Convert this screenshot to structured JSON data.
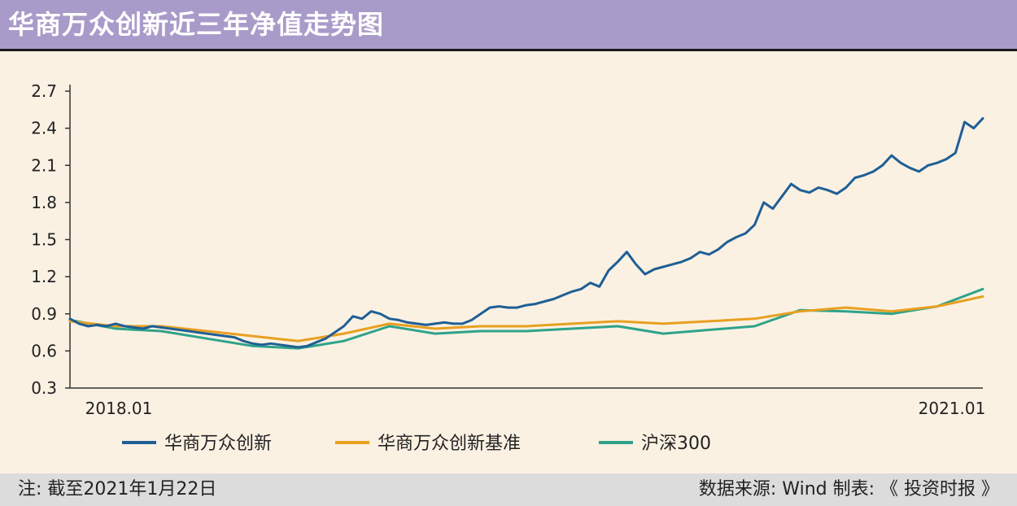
{
  "title": "华商万众创新近三年净值走势图",
  "note": "注: 截至2021年1月22日",
  "source": "数据来源: Wind  制表: 《 投资时报 》",
  "chart_data": {
    "type": "line",
    "title": "华商万众创新近三年净值走势图",
    "y_ticks": [
      "2.7",
      "2.4",
      "2.1",
      "1.8",
      "1.5",
      "1.2",
      "0.9",
      "0.6",
      "0.3"
    ],
    "ylim": [
      0.3,
      2.7
    ],
    "x_labels": [
      "2018.01",
      "2021.01"
    ],
    "xlim": [
      0,
      100
    ],
    "series": [
      {
        "name": "华商万众创新",
        "color": "#1f5f95",
        "x": [
          0,
          1,
          2,
          3,
          4,
          5,
          6,
          7,
          8,
          9,
          10,
          11,
          12,
          13,
          14,
          15,
          16,
          17,
          18,
          19,
          20,
          21,
          22,
          23,
          24,
          25,
          26,
          27,
          28,
          29,
          30,
          31,
          32,
          33,
          34,
          35,
          36,
          37,
          38,
          39,
          40,
          41,
          42,
          43,
          44,
          45,
          46,
          47,
          48,
          49,
          50,
          51,
          52,
          53,
          54,
          55,
          56,
          57,
          58,
          59,
          60,
          61,
          62,
          63,
          64,
          65,
          66,
          67,
          68,
          69,
          70,
          71,
          72,
          73,
          74,
          75,
          76,
          77,
          78,
          79,
          80,
          81,
          82,
          83,
          84,
          85,
          86,
          87,
          88,
          89,
          90,
          91,
          92,
          93,
          94,
          95,
          96,
          97,
          98,
          99,
          100
        ],
        "values": [
          0.86,
          0.82,
          0.8,
          0.81,
          0.8,
          0.82,
          0.8,
          0.79,
          0.78,
          0.8,
          0.79,
          0.78,
          0.77,
          0.76,
          0.75,
          0.74,
          0.73,
          0.72,
          0.71,
          0.68,
          0.66,
          0.65,
          0.66,
          0.65,
          0.64,
          0.63,
          0.64,
          0.67,
          0.7,
          0.75,
          0.8,
          0.88,
          0.86,
          0.92,
          0.9,
          0.86,
          0.85,
          0.83,
          0.82,
          0.81,
          0.82,
          0.83,
          0.82,
          0.82,
          0.85,
          0.9,
          0.95,
          0.96,
          0.95,
          0.95,
          0.97,
          0.98,
          1.0,
          1.02,
          1.05,
          1.08,
          1.1,
          1.15,
          1.12,
          1.25,
          1.32,
          1.4,
          1.3,
          1.22,
          1.26,
          1.28,
          1.3,
          1.32,
          1.35,
          1.4,
          1.38,
          1.42,
          1.48,
          1.52,
          1.55,
          1.62,
          1.8,
          1.75,
          1.85,
          1.95,
          1.9,
          1.88,
          1.92,
          1.9,
          1.87,
          1.92,
          2.0,
          2.02,
          2.05,
          2.1,
          2.18,
          2.12,
          2.08,
          2.05,
          2.1,
          2.12,
          2.15,
          2.2,
          2.45,
          2.4,
          2.48
        ]
      },
      {
        "name": "华商万众创新基准",
        "color": "#e8a020",
        "x": [
          0,
          5,
          10,
          15,
          20,
          25,
          30,
          35,
          40,
          45,
          50,
          55,
          60,
          65,
          70,
          75,
          80,
          85,
          90,
          95,
          100
        ],
        "values": [
          0.84,
          0.8,
          0.8,
          0.76,
          0.72,
          0.68,
          0.74,
          0.82,
          0.78,
          0.8,
          0.8,
          0.82,
          0.84,
          0.82,
          0.84,
          0.86,
          0.92,
          0.95,
          0.92,
          0.96,
          1.04
        ]
      },
      {
        "name": "沪深300",
        "color": "#2ea38a",
        "x": [
          0,
          5,
          10,
          15,
          20,
          25,
          30,
          35,
          40,
          45,
          50,
          55,
          60,
          65,
          70,
          75,
          80,
          85,
          90,
          95,
          100
        ],
        "values": [
          0.85,
          0.78,
          0.76,
          0.7,
          0.64,
          0.62,
          0.68,
          0.8,
          0.74,
          0.76,
          0.76,
          0.78,
          0.8,
          0.74,
          0.77,
          0.8,
          0.93,
          0.92,
          0.9,
          0.96,
          1.1
        ]
      }
    ]
  }
}
